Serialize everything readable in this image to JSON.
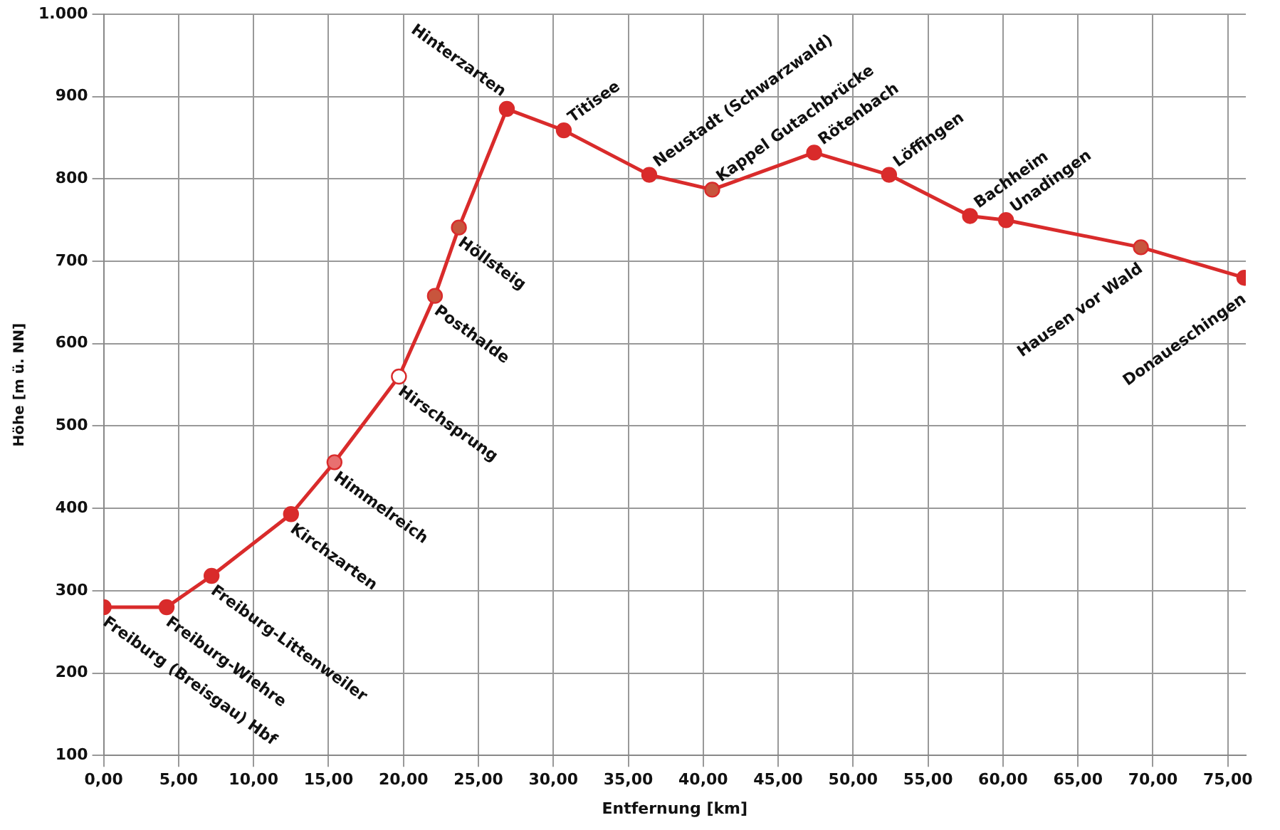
{
  "chart_data": {
    "type": "line",
    "xlabel": "Entfernung [km]",
    "ylabel": "Höhe [m ü. NN]",
    "xlim": [
      0,
      76.2
    ],
    "ylim": [
      100,
      1000
    ],
    "xticks": [
      {
        "value": 0,
        "label": "0,00"
      },
      {
        "value": 5,
        "label": "5,00"
      },
      {
        "value": 10,
        "label": "10,00"
      },
      {
        "value": 15,
        "label": "15,00"
      },
      {
        "value": 20,
        "label": "20,00"
      },
      {
        "value": 25,
        "label": "25,00"
      },
      {
        "value": 30,
        "label": "30,00"
      },
      {
        "value": 35,
        "label": "35,00"
      },
      {
        "value": 40,
        "label": "40,00"
      },
      {
        "value": 45,
        "label": "45,00"
      },
      {
        "value": 50,
        "label": "50,00"
      },
      {
        "value": 55,
        "label": "55,00"
      },
      {
        "value": 60,
        "label": "60,00"
      },
      {
        "value": 65,
        "label": "65,00"
      },
      {
        "value": 70,
        "label": "70,00"
      },
      {
        "value": 75,
        "label": "75,00"
      }
    ],
    "yticks": [
      100,
      200,
      300,
      400,
      500,
      600,
      700,
      800,
      900,
      {
        "value": 1000,
        "label": "1.000"
      }
    ],
    "grid": true,
    "legend": false,
    "marker": "circle",
    "line_style": "solid",
    "x": [
      0,
      4.2,
      7.2,
      12.5,
      15.4,
      19.7,
      22.1,
      23.7,
      26.9,
      30.7,
      36.4,
      40.6,
      47.4,
      52.4,
      57.8,
      60.2,
      69.2,
      76.1
    ],
    "series": [
      {
        "color": "#d92b2b",
        "values": [
          280,
          280,
          318,
          393,
          456,
          560,
          658,
          741,
          885,
          859,
          805,
          787,
          832,
          805,
          755,
          750,
          717,
          680
        ],
        "colors": [
          "#d92b2b",
          "#d92b2b",
          "#d92b2b",
          "#d92b2b",
          "#e87070",
          "#ffffff",
          "#c8553d",
          "#c8553d",
          "#d92b2b",
          "#d92b2b",
          "#d92b2b",
          "#c8553d",
          "#d92b2b",
          "#d92b2b",
          "#d92b2b",
          "#d92b2b",
          "#c8553d",
          "#d92b2b"
        ]
      }
    ],
    "annotations": [
      {
        "text": "Freiburg (Breisgau) Hbf",
        "x": 0,
        "y": 280
      },
      {
        "text": "Freiburg-Wiehre",
        "x": 4.2,
        "y": 280
      },
      {
        "text": "Freiburg-Littenweiler",
        "x": 7.2,
        "y": 318
      },
      {
        "text": "Kirchzarten",
        "x": 12.5,
        "y": 393
      },
      {
        "text": "Himmelreich",
        "x": 15.4,
        "y": 456
      },
      {
        "text": "Hirschsprung",
        "x": 19.7,
        "y": 560
      },
      {
        "text": "Posthalde",
        "x": 22.1,
        "y": 658
      },
      {
        "text": "Höllsteig",
        "x": 23.7,
        "y": 741
      },
      {
        "text": "Hinterzarten",
        "x": 26.9,
        "y": 885
      },
      {
        "text": "Titisee",
        "x": 30.7,
        "y": 859
      },
      {
        "text": "Neustadt (Schwarzwald)",
        "x": 36.4,
        "y": 805
      },
      {
        "text": "Kappel Gutachbrücke",
        "x": 40.6,
        "y": 787
      },
      {
        "text": "Rötenbach",
        "x": 47.4,
        "y": 832
      },
      {
        "text": "Löffingen",
        "x": 52.4,
        "y": 805
      },
      {
        "text": "Bachheim",
        "x": 57.8,
        "y": 755
      },
      {
        "text": "Unadingen",
        "x": 60.2,
        "y": 750
      },
      {
        "text": "Hausen vor Wald",
        "x": 69.2,
        "y": 717
      },
      {
        "text": "Donaueschingen",
        "x": 76.1,
        "y": 680
      }
    ]
  }
}
